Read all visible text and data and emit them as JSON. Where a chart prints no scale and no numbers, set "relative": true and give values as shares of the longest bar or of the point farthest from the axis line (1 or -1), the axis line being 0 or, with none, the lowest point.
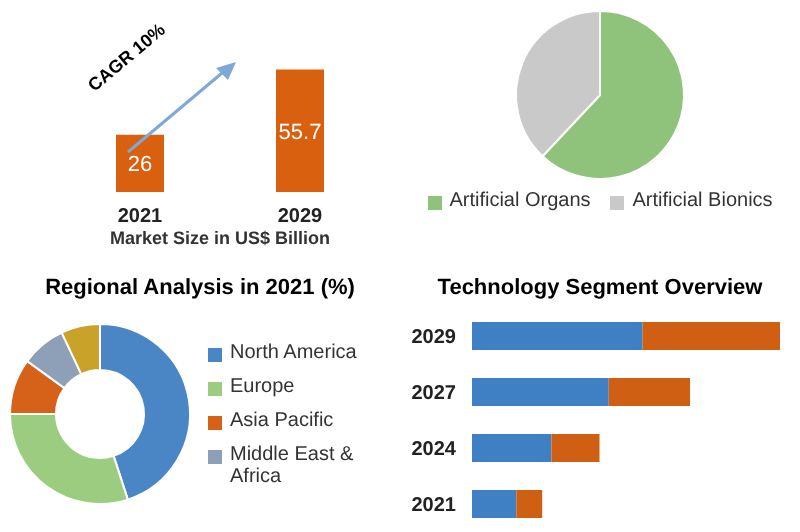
{
  "chart_data": [
    {
      "type": "bar",
      "categories": [
        "2021",
        "2029"
      ],
      "values": [
        26,
        55.7
      ],
      "color": "#d9600f",
      "data_labels": true,
      "xlabel": "Market Size in US$ Billion",
      "annotations": [
        "CAGR 10%"
      ]
    },
    {
      "type": "pie",
      "categories": [
        "Artificial Organs",
        "Artificial Bionics"
      ],
      "values": [
        62,
        38
      ],
      "colors": [
        "#8fc27a",
        "#c9c9c9"
      ],
      "legend": "bottom"
    },
    {
      "type": "donut",
      "title": "Regional Analysis in 2021 (%)",
      "categories": [
        "North America",
        "Europe",
        "Asia Pacific",
        "Middle East & Africa",
        null
      ],
      "values": [
        45,
        30,
        10,
        8,
        7
      ],
      "colors": [
        "#4a86c5",
        "#9ccc7f",
        "#d6621a",
        "#8ea0b8",
        "#c9a22a"
      ],
      "legend": "right"
    },
    {
      "type": "bar",
      "orientation": "horizontal",
      "stacked": true,
      "relative": true,
      "title": "Technology Segment Overview",
      "categories": [
        "2029",
        "2027",
        "2024",
        "2021"
      ],
      "series": [
        {
          "color": "#3f7fc4",
          "values": [
            0.554,
            0.444,
            0.258,
            0.144
          ]
        },
        {
          "color": "#cf5f13",
          "values": [
            0.446,
            0.264,
            0.156,
            0.084
          ]
        }
      ]
    }
  ]
}
